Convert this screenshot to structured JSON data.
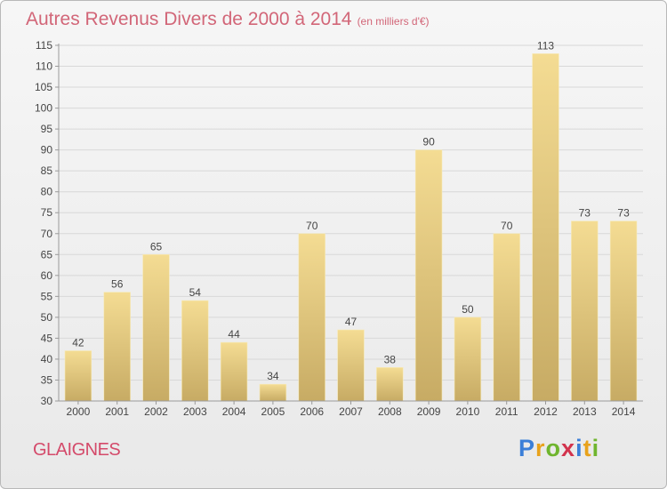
{
  "header": {
    "title": "Autres Revenus Divers de 2000 à 2014",
    "subtitle": "(en milliers d'€)"
  },
  "footer": {
    "commune": "GLAIGNES",
    "logo_text": "Proxiti",
    "logo_colors": [
      "#3b7fd8",
      "#e8a21c",
      "#6fb52e",
      "#d2334d",
      "#3b7fd8",
      "#e8a21c",
      "#6fb52e"
    ]
  },
  "chart_data": {
    "type": "bar",
    "categories": [
      "2000",
      "2001",
      "2002",
      "2003",
      "2004",
      "2005",
      "2006",
      "2007",
      "2008",
      "2009",
      "2010",
      "2011",
      "2012",
      "2013",
      "2014"
    ],
    "values": [
      42,
      56,
      65,
      54,
      44,
      34,
      70,
      47,
      38,
      90,
      50,
      70,
      113,
      73,
      73
    ],
    "ylim": [
      30,
      115
    ],
    "yticks": [
      30,
      35,
      40,
      45,
      50,
      55,
      60,
      65,
      70,
      75,
      80,
      85,
      90,
      95,
      100,
      105,
      110,
      115
    ],
    "grid": true,
    "colors": {
      "bar_top": "#f4dc93",
      "bar_bottom": "#c7ab64",
      "grid": "#d8d8d8",
      "axis": "#9a9a9a",
      "text": "#444444"
    }
  }
}
